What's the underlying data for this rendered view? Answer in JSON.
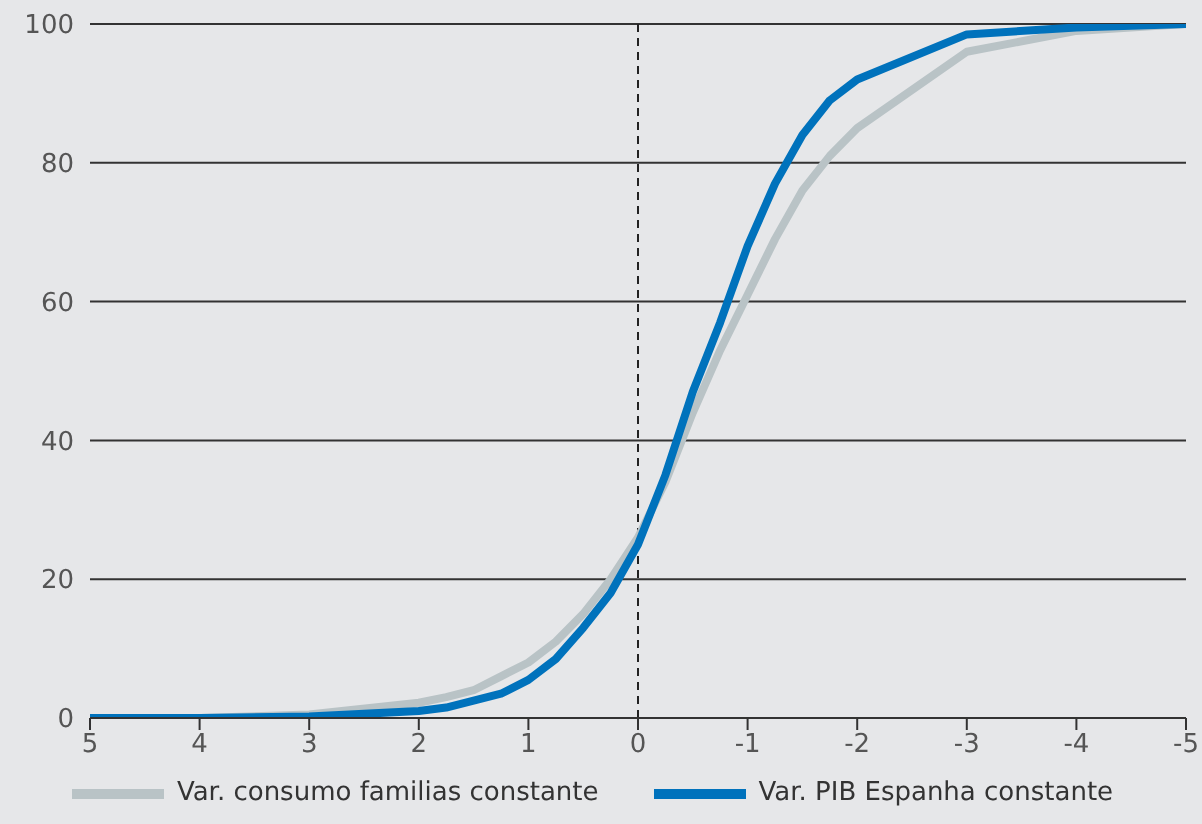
{
  "chart_data": {
    "type": "line",
    "x": [
      5,
      4,
      3,
      2,
      1.75,
      1.5,
      1.25,
      1,
      0.75,
      0.5,
      0.25,
      0,
      -0.25,
      -0.5,
      -0.75,
      -1,
      -1.25,
      -1.5,
      -1.75,
      -2,
      -3,
      -4,
      -5
    ],
    "series": [
      {
        "name": "Var. consumo familias constante",
        "color": "#b9c3c6",
        "values": [
          0,
          0,
          0.5,
          2.2,
          3,
          4,
          6,
          8,
          11,
          15,
          20,
          26,
          34,
          44,
          53,
          61,
          69,
          76,
          81,
          85,
          96,
          99,
          100
        ]
      },
      {
        "name": "Var. PIB Espanha constante",
        "color": "#0072bc",
        "values": [
          0,
          0,
          0.2,
          1,
          1.5,
          2.5,
          3.5,
          5.5,
          8.5,
          13,
          18,
          25,
          35,
          47,
          57,
          68,
          77,
          84,
          89,
          92,
          98.5,
          99.5,
          100
        ]
      }
    ],
    "xlim": [
      5,
      -5
    ],
    "xticks": [
      5,
      4,
      3,
      2,
      1,
      0,
      -1,
      -2,
      -3,
      -4,
      -5
    ],
    "ylim": [
      0,
      100
    ],
    "yticks": [
      0,
      20,
      40,
      60,
      80,
      100
    ],
    "grid": "y",
    "legend": "bottom",
    "marker": "none",
    "line_style": "solid",
    "ref_lines": [
      {
        "axis": "x",
        "value": 0,
        "label": null,
        "color": "#222222",
        "line_style": "dashed"
      }
    ]
  }
}
